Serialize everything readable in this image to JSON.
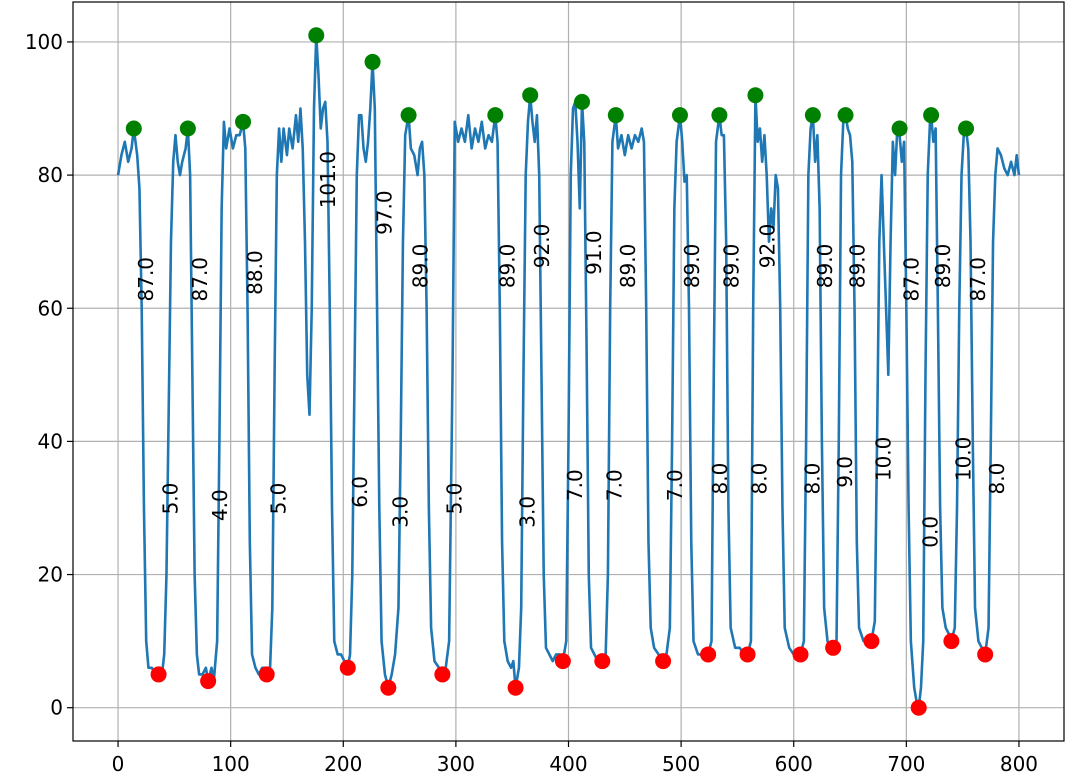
{
  "chart_data": {
    "type": "line",
    "xlim": [
      -40,
      840
    ],
    "ylim": [
      -5,
      106
    ],
    "xticks": [
      0,
      100,
      200,
      300,
      400,
      500,
      600,
      700,
      800
    ],
    "yticks": [
      0,
      20,
      40,
      60,
      80,
      100
    ],
    "grid": true,
    "series": [
      {
        "type": "line",
        "color": "#1f77b4",
        "x": [
          0,
          3,
          6,
          9,
          12,
          14,
          17,
          19,
          21,
          23,
          25,
          27,
          30,
          33,
          36,
          39,
          41,
          43,
          45,
          47,
          49,
          51,
          53,
          55,
          57,
          60,
          62,
          64,
          66,
          68,
          70,
          72,
          75,
          78,
          80,
          83,
          85,
          88,
          90,
          92,
          94,
          96,
          99,
          102,
          105,
          108,
          111,
          113,
          115,
          117,
          119,
          122,
          125,
          128,
          130,
          132,
          135,
          137,
          139,
          141,
          143,
          145,
          147,
          150,
          152,
          155,
          158,
          160,
          162,
          164,
          166,
          168,
          170,
          172,
          174,
          176,
          178,
          180,
          182,
          184,
          186,
          188,
          190,
          192,
          195,
          198,
          201,
          204,
          206,
          208,
          210,
          212,
          214,
          216,
          218,
          220,
          222,
          224,
          226,
          228,
          230,
          232,
          234,
          237,
          240,
          243,
          246,
          249,
          251,
          253,
          255,
          258,
          260,
          263,
          266,
          268,
          270,
          272,
          274,
          276,
          278,
          281,
          285,
          288,
          291,
          294,
          297,
          299,
          302,
          305,
          308,
          311,
          314,
          317,
          320,
          323,
          326,
          329,
          332,
          335,
          337,
          339,
          341,
          343,
          346,
          349,
          351,
          353,
          356,
          358,
          360,
          362,
          364,
          366,
          368,
          370,
          372,
          374,
          376,
          378,
          380,
          383,
          386,
          389,
          392,
          395,
          398,
          400,
          402,
          404,
          406,
          408,
          410,
          412,
          414,
          416,
          418,
          420,
          423,
          426,
          430,
          433,
          435,
          437,
          439,
          442,
          444,
          447,
          450,
          453,
          456,
          459,
          462,
          465,
          467,
          469,
          471,
          473,
          476,
          480,
          484,
          487,
          490,
          492,
          494,
          496,
          499,
          501,
          503,
          505,
          507,
          509,
          511,
          515,
          519,
          522,
          524,
          527,
          529,
          531,
          534,
          536,
          538,
          540,
          542,
          544,
          548,
          552,
          556,
          559,
          562,
          564,
          566,
          568,
          570,
          572,
          574,
          576,
          578,
          580,
          582,
          584,
          586,
          588,
          590,
          592,
          596,
          600,
          603,
          606,
          609,
          611,
          613,
          615,
          617,
          619,
          621,
          623,
          625,
          627,
          630,
          633,
          635,
          638,
          640,
          642,
          644,
          646,
          648,
          650,
          652,
          654,
          656,
          658,
          662,
          666,
          669,
          672,
          674,
          676,
          678,
          680,
          682,
          684,
          686,
          688,
          690,
          692,
          694,
          696,
          698,
          700,
          702,
          704,
          707,
          709,
          711,
          713,
          715,
          717,
          719,
          721,
          722,
          724,
          726,
          728,
          730,
          732,
          735,
          738,
          740,
          743,
          745,
          747,
          749,
          751,
          753,
          755,
          757,
          759,
          761,
          764,
          767,
          770,
          773,
          775,
          777,
          779,
          781,
          784,
          787,
          790,
          793,
          796,
          798,
          800
        ],
        "values": [
          80,
          83,
          85,
          82,
          84,
          87,
          83,
          78,
          60,
          30,
          10,
          6,
          6,
          5,
          5,
          5,
          8,
          20,
          45,
          70,
          82,
          86,
          82,
          80,
          82,
          84,
          87,
          80,
          50,
          20,
          8,
          5,
          5,
          6,
          4,
          6,
          4,
          10,
          40,
          75,
          88,
          84,
          87,
          84,
          86,
          86,
          88,
          84,
          60,
          25,
          8,
          6,
          5,
          6,
          6,
          5,
          6,
          15,
          50,
          80,
          87,
          82,
          87,
          83,
          87,
          84,
          89,
          85,
          90,
          84,
          70,
          50,
          44,
          60,
          90,
          101,
          95,
          87,
          90,
          91,
          85,
          60,
          30,
          10,
          8,
          8,
          7,
          6,
          8,
          20,
          50,
          80,
          89,
          89,
          84,
          82,
          85,
          90,
          97,
          90,
          60,
          30,
          10,
          5,
          3,
          5,
          8,
          15,
          40,
          70,
          86,
          89,
          84,
          83,
          80,
          84,
          85,
          80,
          60,
          30,
          12,
          7,
          6,
          5,
          6,
          10,
          50,
          88,
          85,
          87,
          85,
          89,
          84,
          87,
          85,
          88,
          84,
          86,
          85,
          89,
          85,
          60,
          25,
          10,
          7,
          6,
          7,
          3,
          6,
          15,
          50,
          80,
          88,
          92,
          88,
          85,
          89,
          80,
          50,
          20,
          9,
          8,
          7,
          8,
          8,
          7,
          10,
          40,
          80,
          90,
          91,
          85,
          75,
          91,
          85,
          55,
          20,
          9,
          8,
          7,
          7,
          8,
          20,
          60,
          85,
          89,
          84,
          86,
          83,
          86,
          84,
          86,
          85,
          87,
          85,
          60,
          25,
          12,
          9,
          8,
          7,
          8,
          12,
          40,
          75,
          85,
          89,
          85,
          79,
          80,
          60,
          25,
          10,
          8,
          8,
          8,
          8,
          10,
          50,
          85,
          89,
          86,
          86,
          70,
          30,
          12,
          9,
          9,
          8,
          8,
          10,
          60,
          92,
          85,
          87,
          82,
          86,
          80,
          70,
          75,
          72,
          80,
          78,
          60,
          30,
          12,
          9,
          8,
          8,
          8,
          10,
          40,
          80,
          87,
          89,
          82,
          86,
          75,
          40,
          15,
          10,
          9,
          9,
          10,
          40,
          80,
          88,
          89,
          87,
          86,
          82,
          60,
          25,
          12,
          10,
          10,
          10,
          13,
          40,
          70,
          80,
          70,
          60,
          50,
          70,
          85,
          80,
          87,
          86,
          82,
          85,
          60,
          30,
          10,
          3,
          1,
          0,
          3,
          10,
          50,
          80,
          88,
          89,
          85,
          87,
          60,
          30,
          15,
          12,
          11,
          10,
          12,
          30,
          60,
          80,
          86,
          87,
          84,
          70,
          40,
          15,
          10,
          9,
          8,
          12,
          40,
          70,
          80,
          84,
          83,
          81,
          80,
          82,
          80,
          83,
          80
        ]
      },
      {
        "type": "scatter",
        "color": "#008000",
        "x": [
          14,
          62,
          111,
          176,
          226,
          258,
          335,
          366,
          412,
          442,
          499,
          534,
          566,
          617,
          646,
          694,
          722,
          753
        ],
        "values": [
          87,
          87,
          88,
          101,
          97,
          89,
          89,
          92,
          91,
          89,
          89,
          89,
          92,
          89,
          89,
          87,
          89,
          87
        ],
        "value_labels": [
          "87.0",
          "87.0",
          "88.0",
          "101.0",
          "97.0",
          "89.0",
          "89.0",
          "92.0",
          "91.0",
          "89.0",
          "89.0",
          "89.0",
          "92.0",
          "89.0",
          "89.0",
          "87.0",
          "89.0",
          "87.0"
        ]
      },
      {
        "type": "scatter",
        "color": "#ff0000",
        "x": [
          36,
          80,
          132,
          204,
          240,
          288,
          353,
          395,
          430,
          484,
          524,
          559,
          606,
          635,
          669,
          711,
          740,
          770
        ],
        "values": [
          5,
          4,
          5,
          6,
          3,
          5,
          3,
          7,
          7,
          7,
          8,
          8,
          8,
          9,
          10,
          0,
          10,
          8
        ],
        "value_labels": [
          "5.0",
          "4.0",
          "5.0",
          "6.0",
          "3.0",
          "5.0",
          "3.0",
          "7.0",
          "7.0",
          "7.0",
          "8.0",
          "8.0",
          "8.0",
          "9.0",
          "10.0",
          "0.0",
          "10.0",
          "8.0"
        ]
      }
    ]
  }
}
